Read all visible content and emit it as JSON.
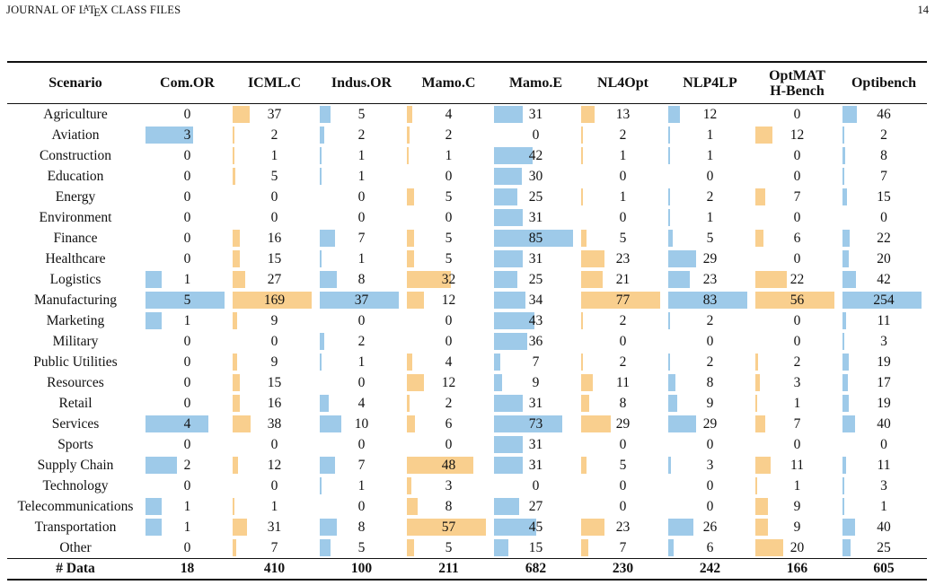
{
  "header": {
    "journal_prefix": "JOURNAL OF L",
    "journal_latex_a": "A",
    "journal_latex_t": "T",
    "journal_latex_e": "E",
    "journal_latex_x": "X",
    "journal_suffix": " CLASS FILES",
    "page_number": "14"
  },
  "colors": {
    "blue": "#9ecae9",
    "orange": "#f9cf8e"
  },
  "table": {
    "scenario_header": "Scenario",
    "columns": [
      {
        "label": "Com.OR",
        "color": "blue",
        "max": 5
      },
      {
        "label": "ICML.C",
        "color": "orange",
        "max": 169
      },
      {
        "label": "Indus.OR",
        "color": "blue",
        "max": 37
      },
      {
        "label": "Mamo.C",
        "color": "orange",
        "max": 57
      },
      {
        "label": "Mamo.E",
        "color": "blue",
        "max": 85
      },
      {
        "label": "NL4Opt",
        "color": "orange",
        "max": 77
      },
      {
        "label": "NLP4LP",
        "color": "blue",
        "max": 83
      },
      {
        "label": "OptMAT\nH-Bench",
        "color": "orange",
        "max": 56
      },
      {
        "label": "Optibench",
        "color": "blue",
        "max": 254
      }
    ],
    "rows": [
      {
        "scenario": "Agriculture",
        "values": [
          0,
          37,
          5,
          4,
          31,
          13,
          12,
          0,
          46
        ]
      },
      {
        "scenario": "Aviation",
        "values": [
          3,
          2,
          2,
          2,
          0,
          2,
          1,
          12,
          2
        ]
      },
      {
        "scenario": "Construction",
        "values": [
          0,
          1,
          1,
          1,
          42,
          1,
          1,
          0,
          8
        ]
      },
      {
        "scenario": "Education",
        "values": [
          0,
          5,
          1,
          0,
          30,
          0,
          0,
          0,
          7
        ]
      },
      {
        "scenario": "Energy",
        "values": [
          0,
          0,
          0,
          5,
          25,
          1,
          2,
          7,
          15
        ]
      },
      {
        "scenario": "Environment",
        "values": [
          0,
          0,
          0,
          0,
          31,
          0,
          1,
          0,
          0
        ]
      },
      {
        "scenario": "Finance",
        "values": [
          0,
          16,
          7,
          5,
          85,
          5,
          5,
          6,
          22
        ]
      },
      {
        "scenario": "Healthcare",
        "values": [
          0,
          15,
          1,
          5,
          31,
          23,
          29,
          0,
          20
        ]
      },
      {
        "scenario": "Logistics",
        "values": [
          1,
          27,
          8,
          32,
          25,
          21,
          23,
          22,
          42
        ]
      },
      {
        "scenario": "Manufacturing",
        "values": [
          5,
          169,
          37,
          12,
          34,
          77,
          83,
          56,
          254
        ]
      },
      {
        "scenario": "Marketing",
        "values": [
          1,
          9,
          0,
          0,
          43,
          2,
          2,
          0,
          11
        ]
      },
      {
        "scenario": "Military",
        "values": [
          0,
          0,
          2,
          0,
          36,
          0,
          0,
          0,
          3
        ]
      },
      {
        "scenario": "Public Utilities",
        "values": [
          0,
          9,
          1,
          4,
          7,
          2,
          2,
          2,
          19
        ]
      },
      {
        "scenario": "Resources",
        "values": [
          0,
          15,
          0,
          12,
          9,
          11,
          8,
          3,
          17
        ]
      },
      {
        "scenario": "Retail",
        "values": [
          0,
          16,
          4,
          2,
          31,
          8,
          9,
          1,
          19
        ]
      },
      {
        "scenario": "Services",
        "values": [
          4,
          38,
          10,
          6,
          73,
          29,
          29,
          7,
          40
        ]
      },
      {
        "scenario": "Sports",
        "values": [
          0,
          0,
          0,
          0,
          31,
          0,
          0,
          0,
          0
        ]
      },
      {
        "scenario": "Supply Chain",
        "values": [
          2,
          12,
          7,
          48,
          31,
          5,
          3,
          11,
          11
        ]
      },
      {
        "scenario": "Technology",
        "values": [
          0,
          0,
          1,
          3,
          0,
          0,
          0,
          1,
          3
        ]
      },
      {
        "scenario": "Telecommunications",
        "values": [
          1,
          1,
          0,
          8,
          27,
          0,
          0,
          9,
          1
        ]
      },
      {
        "scenario": "Transportation",
        "values": [
          1,
          31,
          8,
          57,
          45,
          23,
          26,
          9,
          40
        ]
      },
      {
        "scenario": "Other",
        "values": [
          0,
          7,
          5,
          5,
          15,
          7,
          6,
          20,
          25
        ]
      }
    ],
    "total_label": "# Data",
    "totals": [
      18,
      410,
      100,
      211,
      682,
      230,
      242,
      166,
      605
    ]
  }
}
